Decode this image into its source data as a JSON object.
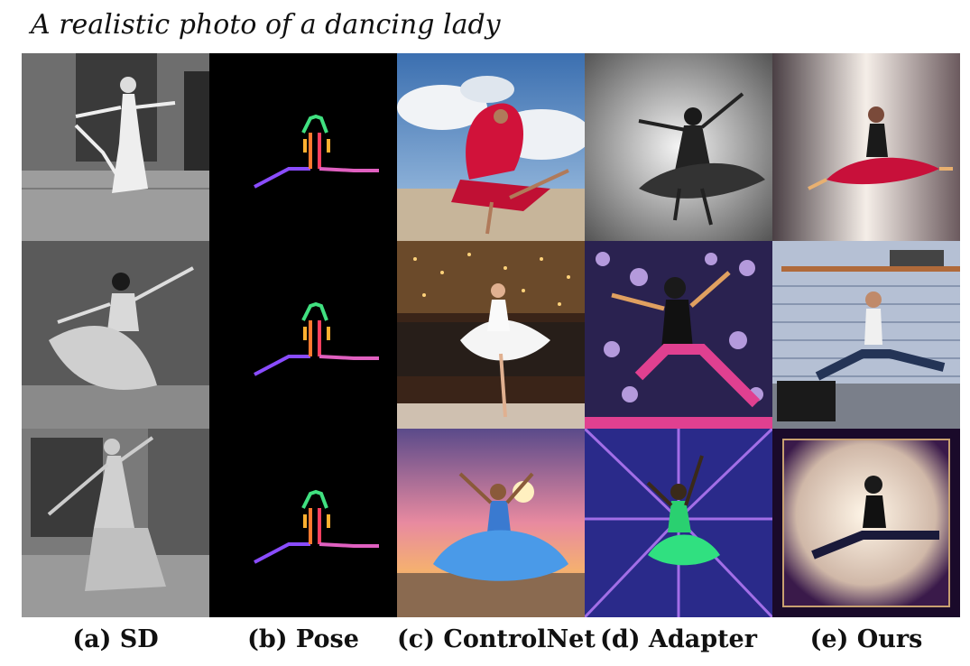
{
  "caption": "A realistic photo of a dancing lady",
  "columns": [
    {
      "id": "sd",
      "label": "(a) SD"
    },
    {
      "id": "pose",
      "label": "(b) Pose"
    },
    {
      "id": "controlnet",
      "label": "(c) ControlNet"
    },
    {
      "id": "adapter",
      "label": "(d) Adapter"
    },
    {
      "id": "ours",
      "label": "(e) Ours"
    }
  ],
  "rows": 3
}
